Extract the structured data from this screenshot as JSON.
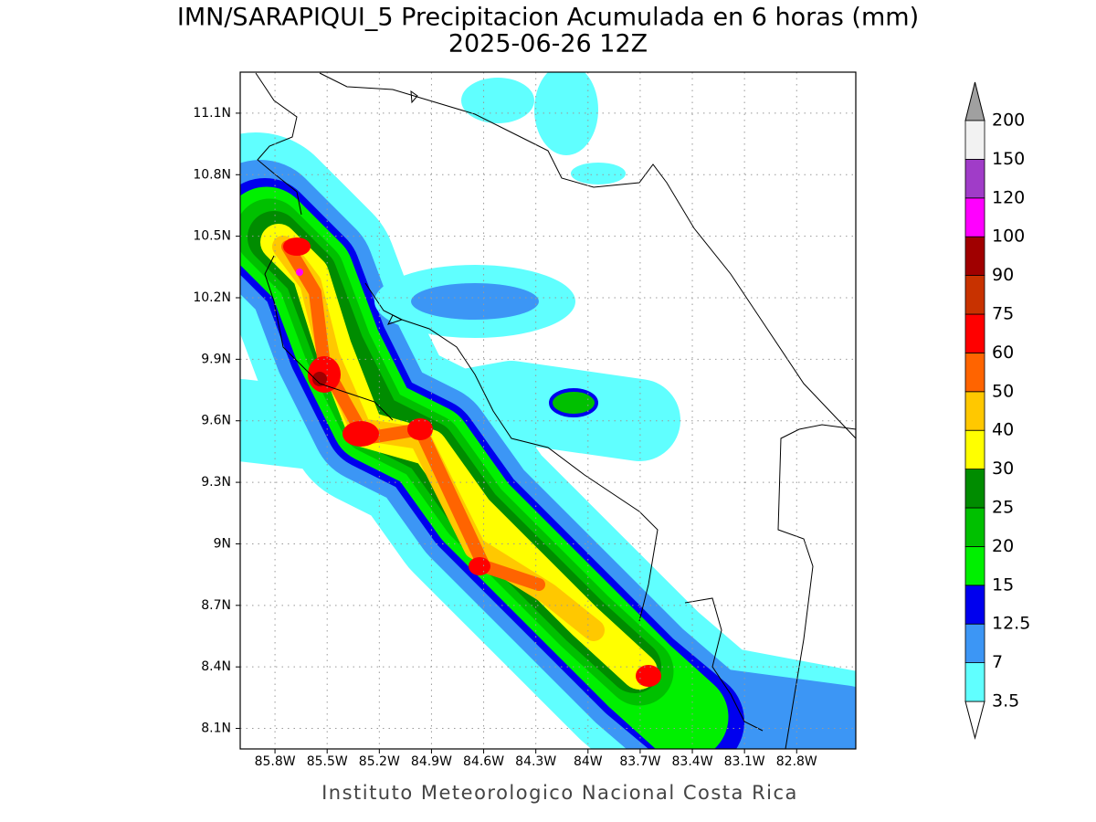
{
  "map_data": {
    "type": "contour-map",
    "title": "IMN/SARAPIQUI_5 Precipitacion Acumulada en 6 horas (mm)",
    "subtitle": "2025-06-26 12Z",
    "footer": "Instituto Meteorologico Nacional Costa Rica",
    "xlim": [
      -86.0,
      -82.46
    ],
    "ylim": [
      8.0,
      11.3
    ],
    "grid": true,
    "xticks": [
      {
        "value": -85.8,
        "label": "85.8W"
      },
      {
        "value": -85.5,
        "label": "85.5W"
      },
      {
        "value": -85.2,
        "label": "85.2W"
      },
      {
        "value": -84.9,
        "label": "84.9W"
      },
      {
        "value": -84.6,
        "label": "84.6W"
      },
      {
        "value": -84.3,
        "label": "84.3W"
      },
      {
        "value": -84.0,
        "label": "84W"
      },
      {
        "value": -83.7,
        "label": "83.7W"
      },
      {
        "value": -83.4,
        "label": "83.4W"
      },
      {
        "value": -83.1,
        "label": "83.1W"
      },
      {
        "value": -82.8,
        "label": "82.8W"
      }
    ],
    "yticks": [
      {
        "value": 8.1,
        "label": "8.1N"
      },
      {
        "value": 8.4,
        "label": "8.4N"
      },
      {
        "value": 8.7,
        "label": "8.7N"
      },
      {
        "value": 9.0,
        "label": "9N"
      },
      {
        "value": 9.3,
        "label": "9.3N"
      },
      {
        "value": 9.6,
        "label": "9.6N"
      },
      {
        "value": 9.9,
        "label": "9.9N"
      },
      {
        "value": 10.2,
        "label": "10.2N"
      },
      {
        "value": 10.5,
        "label": "10.5N"
      },
      {
        "value": 10.8,
        "label": "10.8N"
      },
      {
        "value": 11.1,
        "label": "11.1N"
      }
    ],
    "colorbar": {
      "levels": [
        3.5,
        7,
        12.5,
        15,
        20,
        25,
        30,
        40,
        50,
        60,
        75,
        90,
        100,
        120,
        150,
        200
      ],
      "colors": [
        "#60ffff",
        "#3c96f5",
        "#0000ee",
        "#00f000",
        "#00c000",
        "#008c00",
        "#ffff00",
        "#ffc800",
        "#ff6400",
        "#ff0000",
        "#c83200",
        "#a00000",
        "#ff00ff",
        "#a03cc8",
        "#f2f2f2"
      ],
      "under_color": "#ffffff",
      "over_color": "#a0a0a0"
    }
  }
}
